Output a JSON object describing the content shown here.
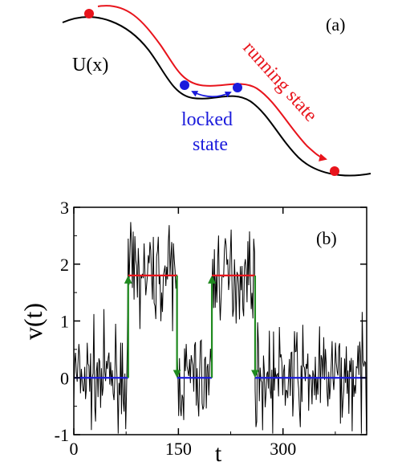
{
  "panel_a": {
    "label": "(a)",
    "potential_label": "U(x)",
    "locked_label_line1": "locked",
    "locked_label_line2": "state",
    "running_label": "running state",
    "colors": {
      "curve": "#000000",
      "running": "#e8141c",
      "locked": "#1b1bdc"
    }
  },
  "panel_b": {
    "label": "(b)",
    "colors": {
      "signal": "#000000",
      "running_level": "#e8141c",
      "locked_level": "#1b1bdc",
      "switch": "#1f8a1f"
    }
  },
  "chart_data": {
    "type": "line",
    "title": "",
    "xlabel": "t",
    "ylabel": "v(t)",
    "xlim": [
      0,
      420
    ],
    "ylim": [
      -1,
      3
    ],
    "xticks": [
      0,
      150,
      300
    ],
    "yticks": [
      -1,
      0,
      1,
      2,
      3
    ],
    "locked_level": 0,
    "running_level": 1.8,
    "segments": [
      {
        "state": "locked",
        "x": [
          0,
          78
        ],
        "level": 0
      },
      {
        "state": "running",
        "x": [
          78,
          148
        ],
        "level": 1.8
      },
      {
        "state": "locked",
        "x": [
          148,
          198
        ],
        "level": 0
      },
      {
        "state": "running",
        "x": [
          198,
          260
        ],
        "level": 1.8
      },
      {
        "state": "locked",
        "x": [
          260,
          420
        ],
        "level": 0
      }
    ],
    "switch_up": [
      78,
      198
    ],
    "switch_down": [
      148,
      260
    ],
    "noise_amplitude_locked": 0.55,
    "noise_amplitude_running": 0.5
  }
}
